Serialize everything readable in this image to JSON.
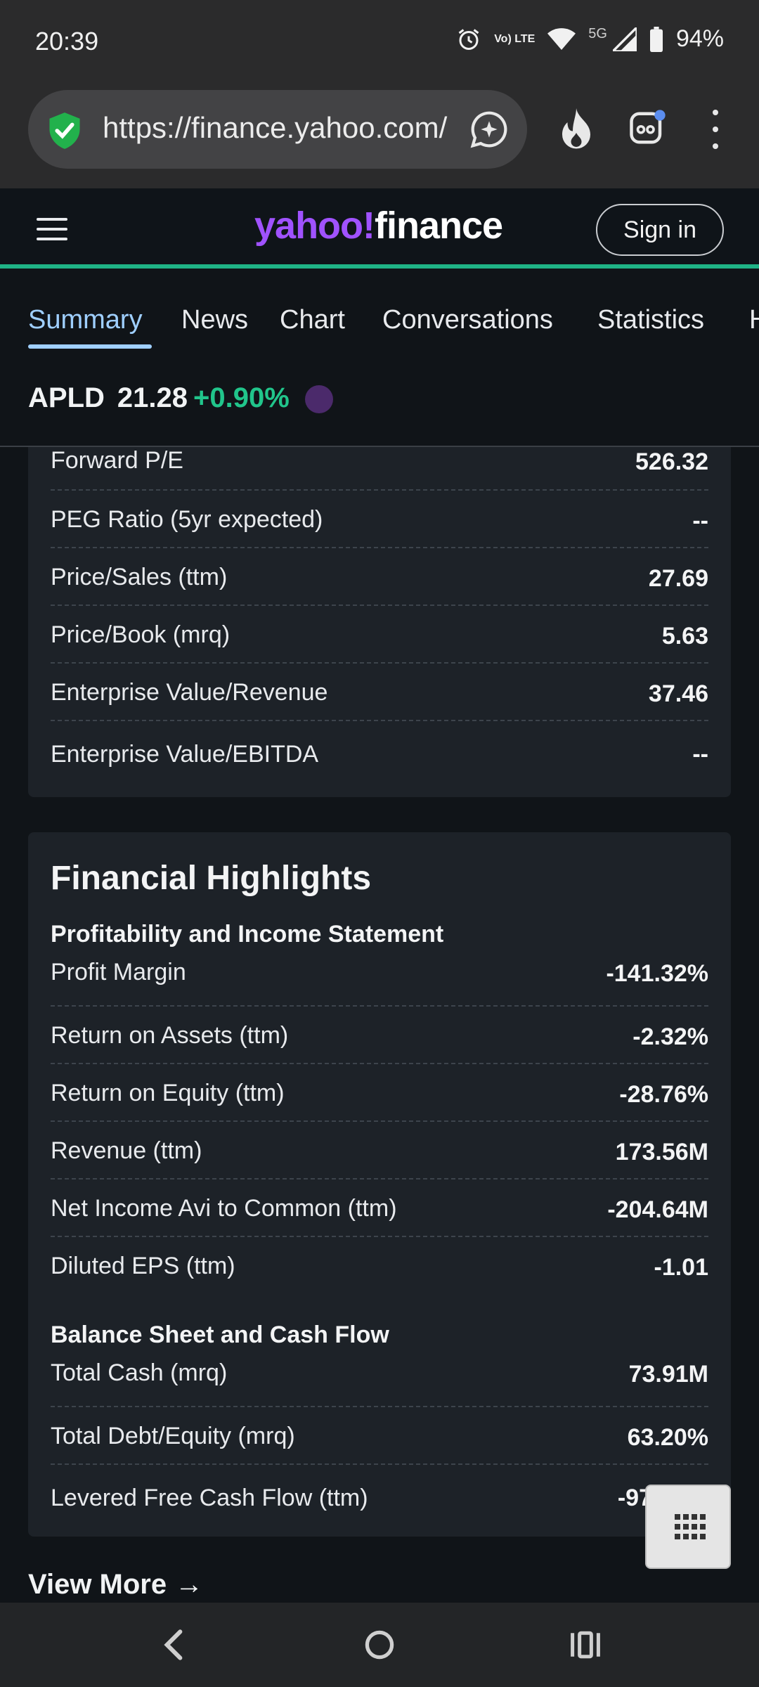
{
  "status_bar": {
    "time": "20:39",
    "network_label": "5G",
    "lte_label": "Vo) LTE",
    "battery": "94%",
    "icons": [
      "alarm-icon",
      "volte-icon",
      "wifi-icon",
      "signal-icon",
      "battery-icon"
    ]
  },
  "browser": {
    "url": "https://finance.yahoo.com/",
    "icons": [
      "shield-check-icon",
      "assistant-icon",
      "flame-icon",
      "tab-switcher-icon",
      "more-vert-icon"
    ]
  },
  "header": {
    "logo_yahoo": "yahoo!",
    "logo_finance": "finance",
    "sign_in_label": "Sign in"
  },
  "tabs": [
    {
      "label": "Summary",
      "active": true
    },
    {
      "label": "News",
      "active": false
    },
    {
      "label": "Chart",
      "active": false
    },
    {
      "label": "Conversations",
      "active": false
    },
    {
      "label": "Statistics",
      "active": false
    },
    {
      "label": "H",
      "active": false
    }
  ],
  "ticker": {
    "symbol": "APLD",
    "price": "21.28",
    "change": "+0.90%",
    "change_color": "#21c58b"
  },
  "valuation_rows": [
    {
      "label": "Forward P/E",
      "value": "526.32"
    },
    {
      "label": "PEG Ratio (5yr expected)",
      "value": "--"
    },
    {
      "label": "Price/Sales (ttm)",
      "value": "27.69"
    },
    {
      "label": "Price/Book (mrq)",
      "value": "5.63"
    },
    {
      "label": "Enterprise Value/Revenue",
      "value": "37.46"
    },
    {
      "label": "Enterprise Value/EBITDA",
      "value": "--"
    }
  ],
  "financial_highlights": {
    "title": "Financial Highlights",
    "profitability": {
      "title": "Profitability and Income Statement",
      "rows": [
        {
          "label": "Profit Margin",
          "value": "-141.32%"
        },
        {
          "label": "Return on Assets (ttm)",
          "value": "-2.32%"
        },
        {
          "label": "Return on Equity (ttm)",
          "value": "-28.76%"
        },
        {
          "label": "Revenue (ttm)",
          "value": "173.56M"
        },
        {
          "label": "Net Income Avi to Common (ttm)",
          "value": "-204.64M"
        },
        {
          "label": "Diluted EPS (ttm)",
          "value": "-1.01"
        }
      ]
    },
    "balance_sheet": {
      "title": "Balance Sheet and Cash Flow",
      "rows": [
        {
          "label": "Total Cash (mrq)",
          "value": "73.91M"
        },
        {
          "label": "Total Debt/Equity (mrq)",
          "value": "63.20%"
        },
        {
          "label": "Levered Free Cash Flow (ttm)",
          "value": "-97"
        }
      ]
    }
  },
  "view_more": {
    "label": "View More",
    "arrow": "→"
  },
  "colors": {
    "brand_purple": "#a052ff",
    "accent_green": "#1fb386",
    "active_tab": "#9fcfff",
    "background": "#101418",
    "panel": "#1d2228"
  }
}
